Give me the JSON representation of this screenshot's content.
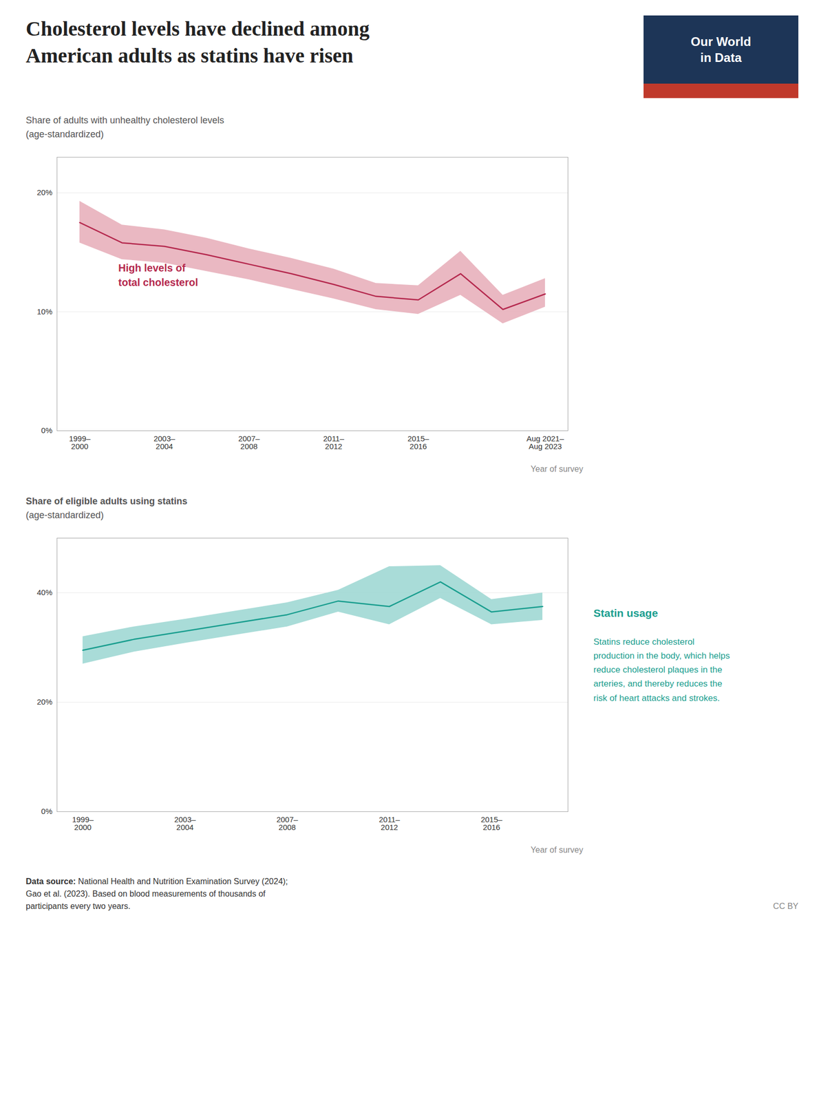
{
  "title": "Cholesterol levels have declined among\nAmerican adults as statins have risen",
  "logo": [
    "Our World",
    "in Data"
  ],
  "logo_colors": [
    "#1d3557",
    "#c0392b"
  ],
  "source_label": "Data source:",
  "source": " National Health and Nutrition Examination Survey (2024);\nGao et al. (2023). Based on blood measurements of thousands of\nparticipants every two years.",
  "license": "CC BY",
  "chart_data": [
    {
      "type": "line",
      "ylabel": "Share of adults with unhealthy cholesterol levels\n(age-standardized)",
      "xlabel": "Year of survey",
      "categories": [
        "1999–\n2000",
        null,
        "2003–\n2004",
        null,
        "2007–\n2008",
        null,
        "2011–\n2012",
        null,
        "2015–\n2016",
        null,
        null,
        "Aug 2021–\nAug 2023"
      ],
      "values": [
        17.5,
        15.8,
        15.5,
        14.8,
        14.0,
        13.2,
        12.3,
        11.3,
        11.0,
        13.2,
        10.2,
        11.5
      ],
      "lower": [
        15.8,
        14.4,
        14.1,
        13.4,
        12.7,
        11.9,
        11.1,
        10.2,
        9.8,
        11.4,
        9.0,
        10.4
      ],
      "upper": [
        19.3,
        17.3,
        16.9,
        16.2,
        15.3,
        14.5,
        13.6,
        12.4,
        12.2,
        15.1,
        11.4,
        12.8
      ],
      "color": "#b5294e",
      "band_color": "#e8b0bb",
      "annotation": "High levels of\ntotal cholesterol",
      "ylim": [
        0,
        23
      ],
      "yticks": [
        {
          "value": 0,
          "label": "0%"
        },
        {
          "value": 10,
          "label": "10%"
        },
        {
          "value": 20,
          "label": "20%"
        }
      ],
      "grid": true
    },
    {
      "type": "line",
      "ylabel": "Share of eligible adults using statins\n(age-standardized)",
      "xlabel": "Year of survey",
      "categories": [
        "1999–\n2000",
        null,
        "2003–\n2004",
        null,
        "2007–\n2008",
        null,
        "2011–\n2012",
        null,
        "2015–\n2016",
        null
      ],
      "values": [
        29.5,
        31.5,
        33.0,
        34.5,
        36.0,
        38.5,
        37.5,
        42.0,
        36.5,
        37.5
      ],
      "lower": [
        27.0,
        29.2,
        30.8,
        32.3,
        33.8,
        36.5,
        34.2,
        39.0,
        34.2,
        35.0
      ],
      "upper": [
        32.0,
        33.8,
        35.2,
        36.7,
        38.2,
        40.5,
        44.8,
        45.0,
        38.8,
        40.0
      ],
      "color": "#1a9e8f",
      "band_color": "#a0d8d4",
      "line_label": "Statin usage",
      "annotation": "Statins reduce cholesterol\nproduction in the body, which helps\nreduce cholesterol plaques in the\narteries, and thereby reduces the\nrisk of heart attacks and strokes.",
      "annotation_color": "#1a9e8f",
      "ylim": [
        0,
        50
      ],
      "yticks": [
        {
          "value": 0,
          "label": "0%"
        },
        {
          "value": 20,
          "label": "20%"
        },
        {
          "value": 40,
          "label": "40%"
        }
      ],
      "grid": true
    }
  ]
}
